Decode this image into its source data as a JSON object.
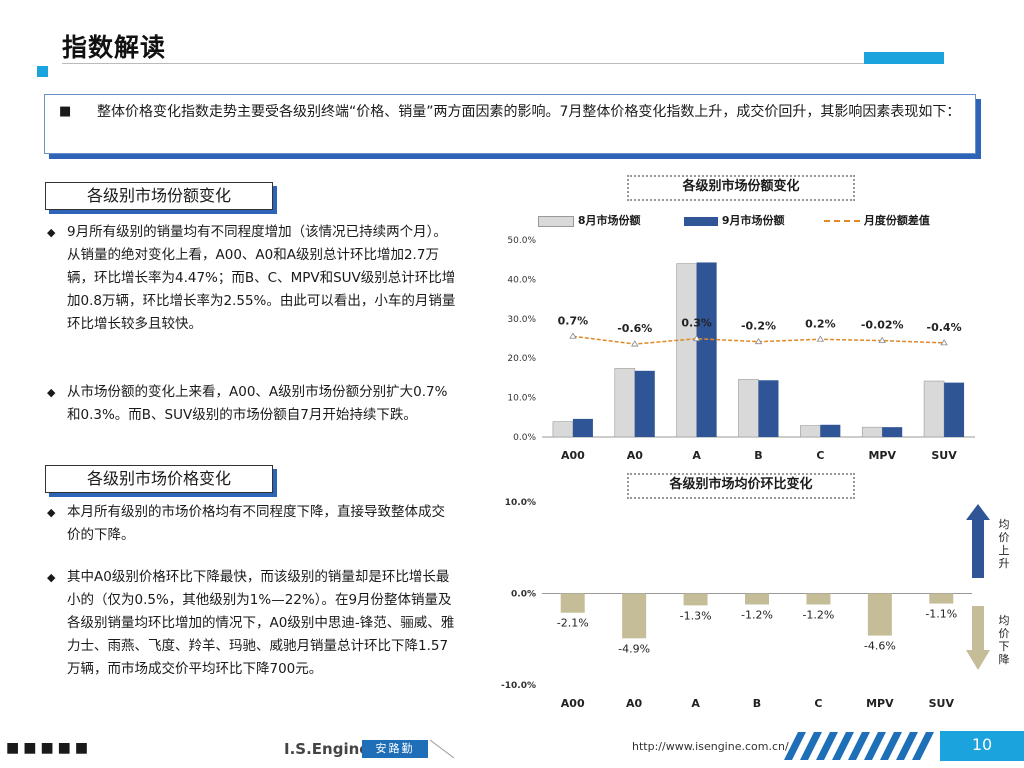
{
  "header": {
    "title": "指数解读"
  },
  "intro": {
    "bullet": "■",
    "text": "整体价格变化指数走势主要受各级别终端“价格、销量”两方面因素的影响。7月整体价格变化指数上升，成交价回升，其影响因素表现如下："
  },
  "section1": {
    "title": "各级别市场份额变化",
    "bullets": [
      "9月所有级别的销量均有不同程度增加（该情况已持续两个月）。从销量的绝对变化上看，A00、A0和A级别总计环比增加2.7万辆，环比增长率为4.47%；而B、C、MPV和SUV级别总计环比增加0.8万辆，环比增长率为2.55%。由此可以看出，小车的月销量环比增长较多且较快。",
      "从市场份额的变化上来看，A00、A级别市场份额分别扩大0.7%和0.3%。而B、SUV级别的市场份额自7月开始持续下跌。"
    ]
  },
  "section2": {
    "title": "各级别市场价格变化",
    "bullets": [
      "本月所有级别的市场价格均有不同程度下降，直接导致整体成交价的下降。",
      "其中A0级别价格环比下降最快，而该级别的销量却是环比增长最小的（仅为0.5%，其他级别为1%—22%）。在9月份整体销量及各级别销量均环比增加的情况下，A0级别中思迪-锋范、骊威、雅力士、雨燕、飞度、羚羊、玛驰、威驰月销量总计环比下降1.57万辆，而市场成交价平均环比下降700元。"
    ]
  },
  "bullet_symbol": "◆",
  "chart_data": [
    {
      "type": "bar",
      "title": "各级别市场份额变化",
      "categories": [
        "A00",
        "A0",
        "A",
        "B",
        "C",
        "MPV",
        "SUV"
      ],
      "series": [
        {
          "name": "8月市场份额",
          "type": "bar",
          "color": "#d9d9d9",
          "values": [
            3.9,
            17.4,
            44.0,
            14.6,
            2.9,
            2.5,
            14.2
          ]
        },
        {
          "name": "9月市场份额",
          "type": "bar",
          "color": "#2f5597",
          "values": [
            4.6,
            16.8,
            44.3,
            14.4,
            3.1,
            2.5,
            13.8
          ]
        },
        {
          "name": "月度份额差值",
          "type": "line",
          "color": "#e0892a",
          "values": [
            0.7,
            -0.6,
            0.3,
            -0.2,
            0.2,
            -0.02,
            -0.4
          ],
          "labels": [
            "0.7%",
            "-0.6%",
            "0.3%",
            "-0.2%",
            "0.2%",
            "-0.02%",
            "-0.4%"
          ]
        }
      ],
      "yticks": [
        "0.0%",
        "10.0%",
        "20.0%",
        "30.0%",
        "40.0%",
        "50.0%"
      ],
      "ylim": [
        0,
        50
      ],
      "legend": "top"
    },
    {
      "type": "bar",
      "title": "各级别市场均价环比变化",
      "categories": [
        "A00",
        "A0",
        "A",
        "B",
        "C",
        "MPV",
        "SUV"
      ],
      "series": [
        {
          "color": "#c4bd97",
          "values": [
            -2.1,
            -4.9,
            -1.3,
            -1.2,
            -1.2,
            -4.6,
            -1.1
          ],
          "labels": [
            "-2.1%",
            "-4.9%",
            "-1.3%",
            "-1.2%",
            "-1.2%",
            "-4.6%",
            "-1.1%"
          ]
        }
      ],
      "yticks": [
        "-10.0%",
        "0.0%",
        "10.0%"
      ],
      "ylim": [
        -10,
        10
      ],
      "arrow_up_label": "均价上升",
      "arrow_down_label": "均价下降"
    }
  ],
  "footer": {
    "dots": "■■■■■",
    "logo": "I.S.Engine",
    "brand": "安路勤",
    "url": "http://www.isengine.com.cn/",
    "page": "10"
  },
  "colors": {
    "accent": "#1aa3dd",
    "shadow": "#2e64b7"
  }
}
